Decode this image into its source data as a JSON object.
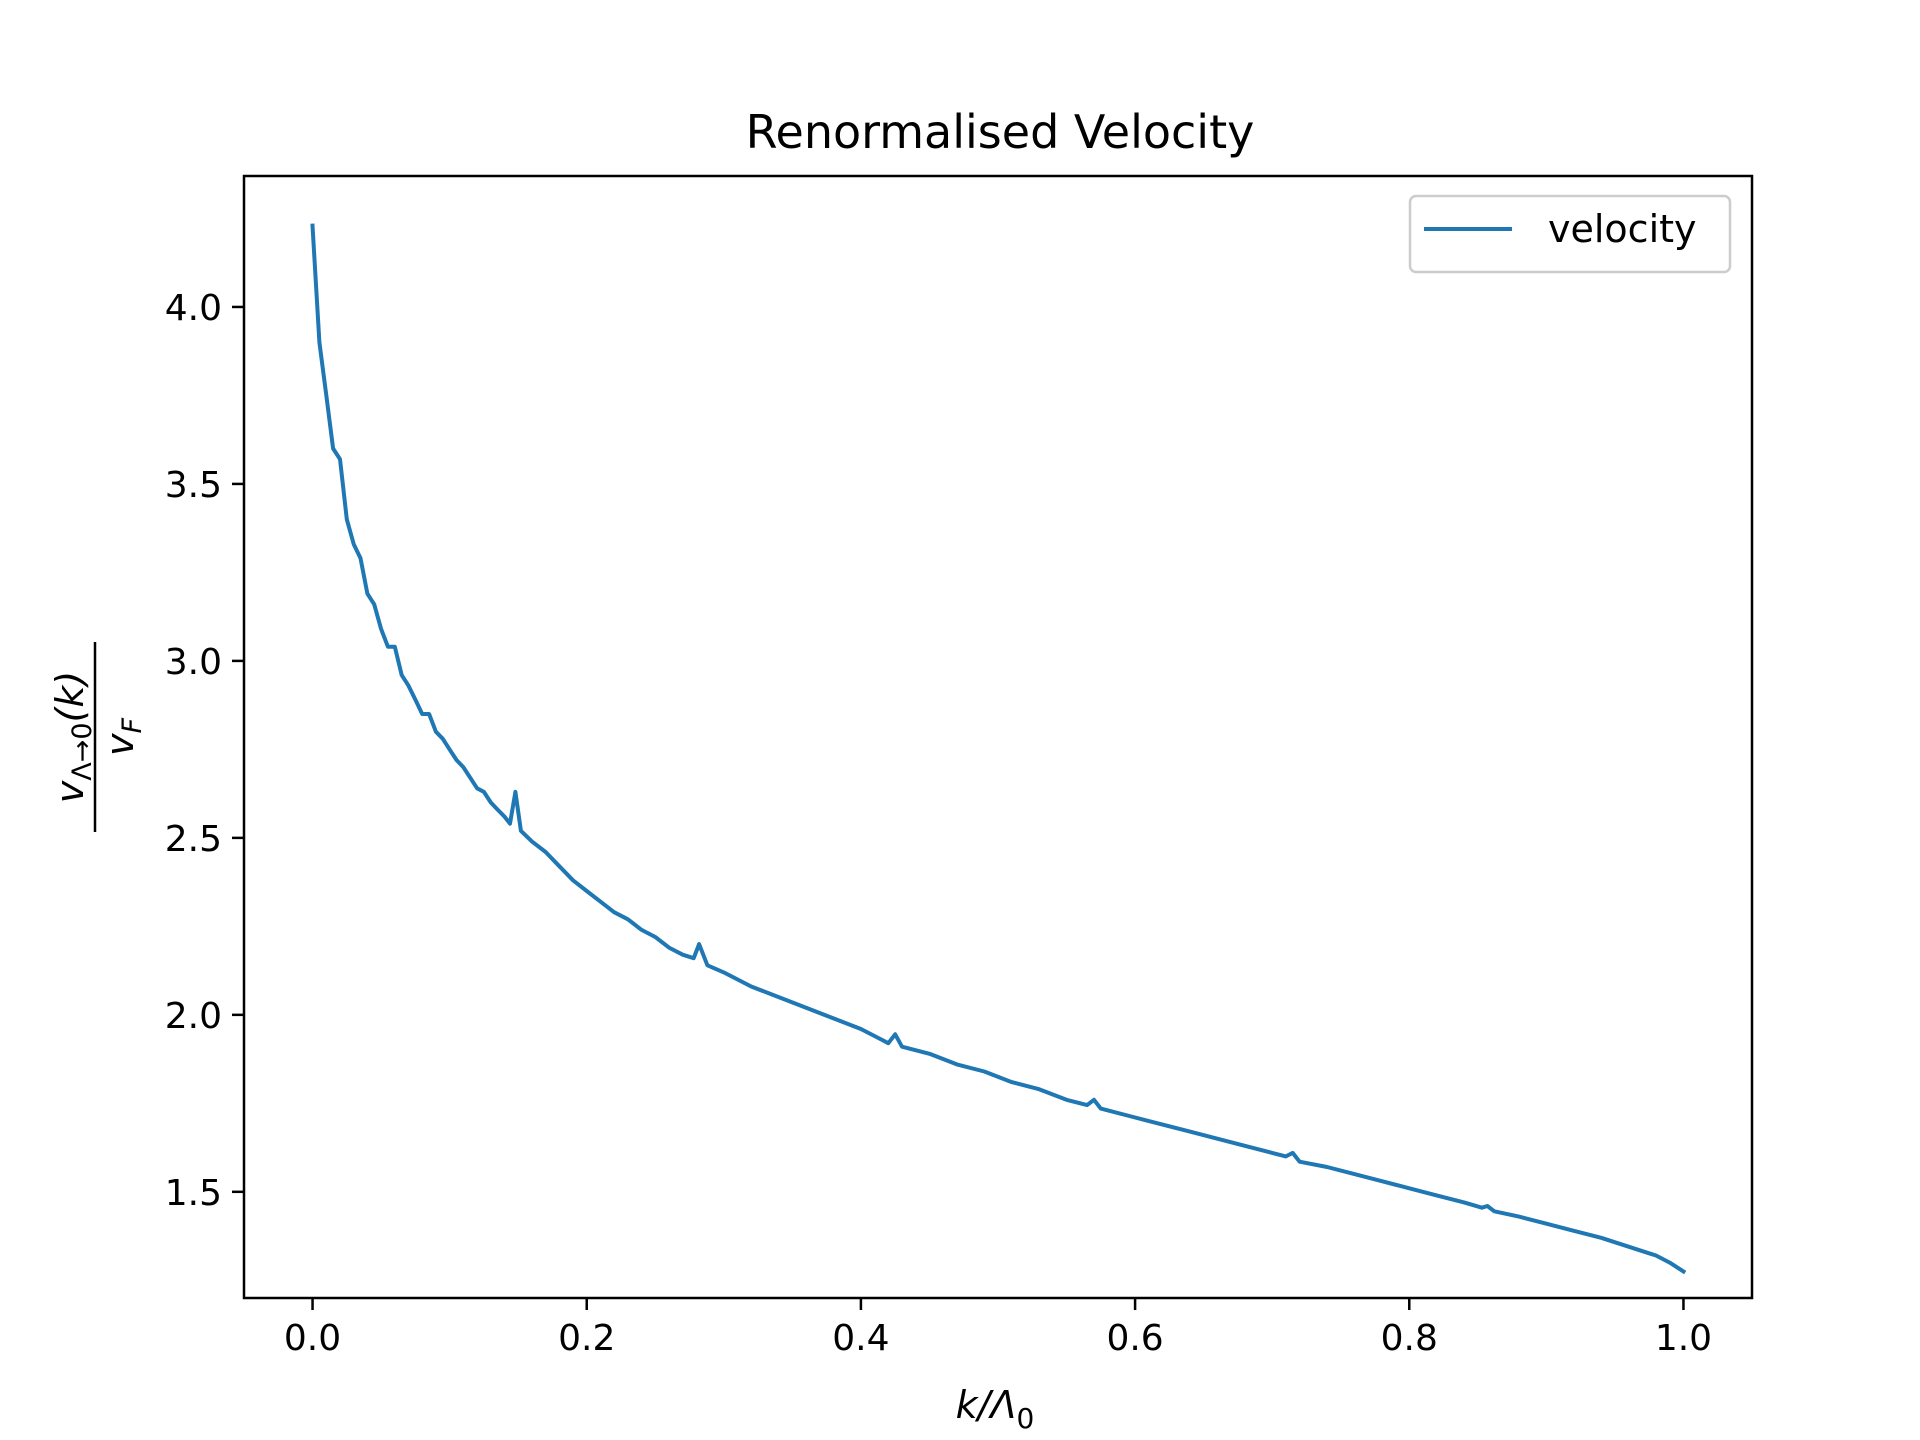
{
  "chart_data": {
    "type": "line",
    "title": "Renormalised Velocity",
    "xlabel": "k/Λ₀",
    "ylabel": "v_{Λ→0}(k) / v_F",
    "ylabel_numerator": "v",
    "ylabel_numerator_sub": "Λ→0",
    "ylabel_numerator_tail": "(k)",
    "ylabel_denominator": "v",
    "ylabel_denominator_sub": "F",
    "xlabel_main": "k/Λ",
    "xlabel_sub": "0",
    "xlim": [
      -0.05,
      1.05
    ],
    "ylim": [
      1.2,
      4.37
    ],
    "xticks": [
      0.0,
      0.2,
      0.4,
      0.6,
      0.8,
      1.0
    ],
    "xtick_labels": [
      "0.0",
      "0.2",
      "0.4",
      "0.6",
      "0.8",
      "1.0"
    ],
    "yticks": [
      1.5,
      2.0,
      2.5,
      3.0,
      3.5,
      4.0
    ],
    "ytick_labels": [
      "1.5",
      "2.0",
      "2.5",
      "3.0",
      "3.5",
      "4.0"
    ],
    "grid": false,
    "legend_position": "top-right",
    "series": [
      {
        "name": "velocity",
        "color": "#1f77b4",
        "points": [
          [
            0.0,
            4.23
          ],
          [
            0.005,
            3.9
          ],
          [
            0.01,
            3.75
          ],
          [
            0.015,
            3.6
          ],
          [
            0.02,
            3.57
          ],
          [
            0.025,
            3.4
          ],
          [
            0.03,
            3.33
          ],
          [
            0.035,
            3.29
          ],
          [
            0.04,
            3.19
          ],
          [
            0.045,
            3.16
          ],
          [
            0.05,
            3.09
          ],
          [
            0.055,
            3.04
          ],
          [
            0.06,
            3.04
          ],
          [
            0.065,
            2.96
          ],
          [
            0.07,
            2.93
          ],
          [
            0.075,
            2.89
          ],
          [
            0.08,
            2.85
          ],
          [
            0.085,
            2.85
          ],
          [
            0.09,
            2.8
          ],
          [
            0.095,
            2.78
          ],
          [
            0.1,
            2.75
          ],
          [
            0.105,
            2.72
          ],
          [
            0.11,
            2.7
          ],
          [
            0.115,
            2.67
          ],
          [
            0.12,
            2.64
          ],
          [
            0.125,
            2.63
          ],
          [
            0.13,
            2.6
          ],
          [
            0.135,
            2.58
          ],
          [
            0.14,
            2.56
          ],
          [
            0.144,
            2.54
          ],
          [
            0.148,
            2.63
          ],
          [
            0.152,
            2.52
          ],
          [
            0.16,
            2.49
          ],
          [
            0.17,
            2.46
          ],
          [
            0.18,
            2.42
          ],
          [
            0.19,
            2.38
          ],
          [
            0.2,
            2.35
          ],
          [
            0.21,
            2.32
          ],
          [
            0.22,
            2.29
          ],
          [
            0.23,
            2.27
          ],
          [
            0.24,
            2.24
          ],
          [
            0.25,
            2.22
          ],
          [
            0.26,
            2.19
          ],
          [
            0.27,
            2.17
          ],
          [
            0.278,
            2.16
          ],
          [
            0.282,
            2.2
          ],
          [
            0.288,
            2.14
          ],
          [
            0.3,
            2.12
          ],
          [
            0.32,
            2.08
          ],
          [
            0.34,
            2.05
          ],
          [
            0.36,
            2.02
          ],
          [
            0.38,
            1.99
          ],
          [
            0.4,
            1.96
          ],
          [
            0.415,
            1.93
          ],
          [
            0.42,
            1.92
          ],
          [
            0.425,
            1.945
          ],
          [
            0.43,
            1.91
          ],
          [
            0.45,
            1.89
          ],
          [
            0.47,
            1.86
          ],
          [
            0.49,
            1.84
          ],
          [
            0.51,
            1.81
          ],
          [
            0.53,
            1.79
          ],
          [
            0.55,
            1.76
          ],
          [
            0.565,
            1.745
          ],
          [
            0.57,
            1.76
          ],
          [
            0.575,
            1.735
          ],
          [
            0.6,
            1.71
          ],
          [
            0.62,
            1.69
          ],
          [
            0.64,
            1.67
          ],
          [
            0.66,
            1.65
          ],
          [
            0.68,
            1.63
          ],
          [
            0.7,
            1.61
          ],
          [
            0.71,
            1.6
          ],
          [
            0.715,
            1.61
          ],
          [
            0.72,
            1.585
          ],
          [
            0.74,
            1.57
          ],
          [
            0.76,
            1.55
          ],
          [
            0.78,
            1.53
          ],
          [
            0.8,
            1.51
          ],
          [
            0.82,
            1.49
          ],
          [
            0.84,
            1.47
          ],
          [
            0.853,
            1.455
          ],
          [
            0.857,
            1.46
          ],
          [
            0.862,
            1.445
          ],
          [
            0.88,
            1.43
          ],
          [
            0.9,
            1.41
          ],
          [
            0.92,
            1.39
          ],
          [
            0.94,
            1.37
          ],
          [
            0.96,
            1.345
          ],
          [
            0.98,
            1.32
          ],
          [
            0.99,
            1.3
          ],
          [
            1.0,
            1.275
          ]
        ]
      }
    ]
  }
}
